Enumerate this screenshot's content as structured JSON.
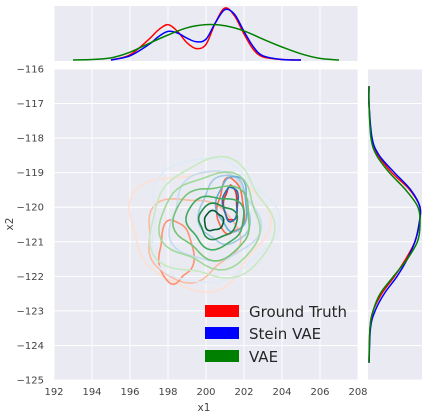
{
  "chart_data": {
    "type": "joint-density",
    "xlabel": "x1",
    "ylabel": "x2",
    "xlim": [
      192,
      208
    ],
    "ylim": [
      -125,
      -116
    ],
    "x_ticks": [
      "192",
      "194",
      "196",
      "198",
      "200",
      "202",
      "204",
      "206",
      "208"
    ],
    "y_ticks": [
      "−125",
      "−124",
      "−123",
      "−122",
      "−121",
      "−120",
      "−119",
      "−118",
      "−117",
      "−116"
    ],
    "legend": {
      "placement": "lower-right",
      "entries": [
        {
          "label": "Ground Truth",
          "color": "#ff0000"
        },
        {
          "label": "Stein VAE",
          "color": "#0000ff"
        },
        {
          "label": "VAE",
          "color": "#008000"
        }
      ]
    },
    "colors": {
      "background": "#eaeaf2",
      "grid": "#ffffff",
      "ground_truth": "#ff0000",
      "stein_vae": "#0000ff",
      "vae": "#008000"
    },
    "marginal_x": [
      {
        "name": "Ground Truth",
        "color": "#ff0000",
        "x": [
          195,
          196,
          197,
          197.5,
          198,
          198.5,
          199,
          199.5,
          200,
          200.5,
          201,
          201.5,
          202,
          202.5,
          203,
          204,
          205
        ],
        "density": [
          0.0,
          0.1,
          0.4,
          0.58,
          0.68,
          0.55,
          0.33,
          0.22,
          0.3,
          0.72,
          1.0,
          0.85,
          0.5,
          0.2,
          0.06,
          0.01,
          0.0
        ]
      },
      {
        "name": "Stein VAE",
        "color": "#0000ff",
        "x": [
          195,
          196,
          197,
          197.5,
          198,
          198.5,
          199,
          199.5,
          200,
          200.5,
          201,
          201.5,
          202,
          202.5,
          203,
          204,
          205
        ],
        "density": [
          0.0,
          0.08,
          0.3,
          0.45,
          0.55,
          0.52,
          0.42,
          0.35,
          0.4,
          0.72,
          0.97,
          0.88,
          0.55,
          0.25,
          0.08,
          0.01,
          0.0
        ]
      },
      {
        "name": "VAE",
        "color": "#008000",
        "x": [
          193,
          194,
          195,
          196,
          197,
          198,
          199,
          200,
          201,
          202,
          203,
          204,
          205,
          206,
          207
        ],
        "density": [
          0.0,
          0.01,
          0.04,
          0.15,
          0.32,
          0.48,
          0.62,
          0.68,
          0.66,
          0.56,
          0.4,
          0.25,
          0.12,
          0.03,
          0.0
        ]
      }
    ],
    "marginal_y": [
      {
        "name": "Ground Truth",
        "color": "#ff0000",
        "y": [
          -124.5,
          -123.5,
          -123,
          -122.5,
          -122,
          -121.5,
          -121,
          -120.5,
          -120,
          -119.5,
          -119,
          -118.5,
          -118,
          -117,
          -116.5
        ],
        "density": [
          0.0,
          0.02,
          0.08,
          0.25,
          0.5,
          0.72,
          0.9,
          0.98,
          1.0,
          0.8,
          0.45,
          0.18,
          0.05,
          0.0,
          0.0
        ]
      },
      {
        "name": "Stein VAE",
        "color": "#0000ff",
        "y": [
          -124.5,
          -123.5,
          -123,
          -122.5,
          -122,
          -121.5,
          -121,
          -120.5,
          -120,
          -119.5,
          -119,
          -118.5,
          -118,
          -117,
          -116.5
        ],
        "density": [
          0.0,
          0.03,
          0.12,
          0.3,
          0.55,
          0.75,
          0.9,
          0.98,
          1.0,
          0.82,
          0.5,
          0.2,
          0.06,
          0.0,
          0.0
        ]
      },
      {
        "name": "VAE",
        "color": "#008000",
        "y": [
          -124.5,
          -123.5,
          -123,
          -122.5,
          -122,
          -121.5,
          -121,
          -120.5,
          -120,
          -119.5,
          -119,
          -118.5,
          -118,
          -117,
          -116.5
        ],
        "density": [
          0.0,
          0.02,
          0.08,
          0.22,
          0.48,
          0.75,
          0.95,
          1.0,
          0.96,
          0.72,
          0.4,
          0.15,
          0.04,
          0.0,
          0.0
        ]
      }
    ],
    "contours": [
      {
        "name": "Ground Truth",
        "palette": "reds",
        "center": [
          199.8,
          -120.7
        ],
        "levels": [
          {
            "cx": 199.6,
            "cy": -120.6,
            "rx": 3.6,
            "ry": 1.7,
            "color": "#fde0d2"
          },
          {
            "cx": 199.2,
            "cy": -120.9,
            "rx": 2.4,
            "ry": 1.2,
            "color": "#fcbba1"
          },
          {
            "cx": 198.4,
            "cy": -121.3,
            "rx": 0.9,
            "ry": 0.9,
            "color": "#fc9272"
          },
          {
            "cx": 201.3,
            "cy": -120.0,
            "rx": 0.7,
            "ry": 0.8,
            "color": "#fb6a4a"
          },
          {
            "cx": 201.3,
            "cy": -119.9,
            "rx": 0.35,
            "ry": 0.5,
            "color": "#de2d26"
          }
        ]
      },
      {
        "name": "Stein VAE",
        "palette": "blues",
        "center": [
          200.5,
          -120.3
        ],
        "levels": [
          {
            "cx": 200.2,
            "cy": -120.4,
            "rx": 3.3,
            "ry": 1.8,
            "color": "#deebf7"
          },
          {
            "cx": 200.4,
            "cy": -120.3,
            "rx": 2.3,
            "ry": 1.3,
            "color": "#c6dbef"
          },
          {
            "cx": 201.0,
            "cy": -120.1,
            "rx": 1.3,
            "ry": 1.0,
            "color": "#9ecae1"
          },
          {
            "cx": 201.4,
            "cy": -119.9,
            "rx": 0.8,
            "ry": 0.8,
            "color": "#6baed6"
          },
          {
            "cx": 201.3,
            "cy": -119.9,
            "rx": 0.4,
            "ry": 0.5,
            "color": "#2171b5"
          }
        ]
      },
      {
        "name": "VAE",
        "palette": "greens",
        "center": [
          200.3,
          -120.4
        ],
        "levels": [
          {
            "cx": 200.3,
            "cy": -120.4,
            "rx": 3.2,
            "ry": 1.7,
            "color": "#c7e9c0"
          },
          {
            "cx": 200.3,
            "cy": -120.4,
            "rx": 2.6,
            "ry": 1.35,
            "color": "#a1d99b"
          },
          {
            "cx": 200.4,
            "cy": -120.4,
            "rx": 2.0,
            "ry": 1.05,
            "color": "#74c476"
          },
          {
            "cx": 200.5,
            "cy": -120.4,
            "rx": 1.5,
            "ry": 0.75,
            "color": "#41ab5d"
          },
          {
            "cx": 200.6,
            "cy": -120.4,
            "rx": 1.0,
            "ry": 0.5,
            "color": "#238b45"
          },
          {
            "cx": 200.4,
            "cy": -120.4,
            "rx": 0.5,
            "ry": 0.28,
            "color": "#005a32"
          }
        ]
      }
    ]
  }
}
